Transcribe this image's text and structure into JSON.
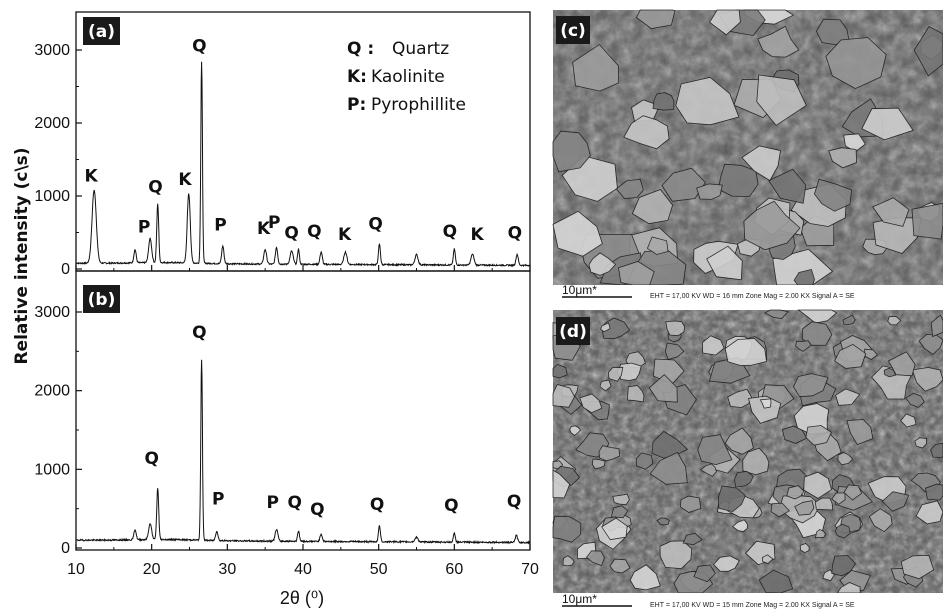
{
  "chart_data": [
    {
      "panel": "(a)",
      "type": "line",
      "xlabel": "2θ (⁰)",
      "ylabel": "Relative intensity (c\\s)",
      "xlim": [
        10,
        70
      ],
      "ylim": [
        0,
        3200
      ],
      "x_ticks": [
        "10",
        "20",
        "30",
        "40",
        "50",
        "60",
        "70"
      ],
      "y_ticks": [
        "0",
        "1000",
        "2000",
        "3000"
      ],
      "legend": [
        {
          "key": "Q :",
          "value": "Quartz"
        },
        {
          "key": "K:",
          "value": "Kaolinite"
        },
        {
          "key": "P:",
          "value": "Pyrophillite"
        }
      ],
      "baseline": 80,
      "peaks": [
        {
          "x": 12.4,
          "y": 1000,
          "w": 0.28
        },
        {
          "x": 17.8,
          "y": 180,
          "w": 0.15
        },
        {
          "x": 19.8,
          "y": 330,
          "w": 0.2
        },
        {
          "x": 20.8,
          "y": 800,
          "w": 0.13
        },
        {
          "x": 24.9,
          "y": 950,
          "w": 0.2
        },
        {
          "x": 26.6,
          "y": 2760,
          "w": 0.11
        },
        {
          "x": 29.4,
          "y": 240,
          "w": 0.15
        },
        {
          "x": 35.0,
          "y": 200,
          "w": 0.18
        },
        {
          "x": 36.5,
          "y": 230,
          "w": 0.15
        },
        {
          "x": 38.5,
          "y": 180,
          "w": 0.2
        },
        {
          "x": 39.4,
          "y": 210,
          "w": 0.12
        },
        {
          "x": 42.4,
          "y": 170,
          "w": 0.15
        },
        {
          "x": 45.6,
          "y": 170,
          "w": 0.2
        },
        {
          "x": 50.1,
          "y": 280,
          "w": 0.13
        },
        {
          "x": 55.0,
          "y": 140,
          "w": 0.2
        },
        {
          "x": 60.0,
          "y": 220,
          "w": 0.13
        },
        {
          "x": 62.4,
          "y": 150,
          "w": 0.2
        },
        {
          "x": 68.3,
          "y": 150,
          "w": 0.15
        }
      ],
      "peak_labels": [
        {
          "text": "K",
          "x": 12.0,
          "y": 1200
        },
        {
          "text": "P",
          "x": 19.0,
          "y": 500
        },
        {
          "text": "Q",
          "x": 20.5,
          "y": 1050
        },
        {
          "text": "K",
          "x": 24.4,
          "y": 1150
        },
        {
          "text": "Q",
          "x": 26.3,
          "y": 2980
        },
        {
          "text": "P",
          "x": 29.1,
          "y": 530
        },
        {
          "text": "K",
          "x": 34.8,
          "y": 480
        },
        {
          "text": "P",
          "x": 36.2,
          "y": 560
        },
        {
          "text": "Q",
          "x": 38.5,
          "y": 420
        },
        {
          "text": "Q",
          "x": 41.5,
          "y": 440
        },
        {
          "text": "K",
          "x": 45.5,
          "y": 400
        },
        {
          "text": "Q",
          "x": 49.6,
          "y": 540
        },
        {
          "text": "Q",
          "x": 59.4,
          "y": 440
        },
        {
          "text": "K",
          "x": 63.0,
          "y": 400
        },
        {
          "text": "Q",
          "x": 68.0,
          "y": 420
        }
      ]
    },
    {
      "panel": "(b)",
      "type": "line",
      "xlim": [
        10,
        70
      ],
      "ylim": [
        0,
        3200
      ],
      "x_ticks": [
        "10",
        "20",
        "30",
        "40",
        "50",
        "60",
        "70"
      ],
      "y_ticks": [
        "0",
        "1000",
        "2000",
        "3000"
      ],
      "baseline": 100,
      "peaks": [
        {
          "x": 17.8,
          "y": 130,
          "w": 0.15
        },
        {
          "x": 19.8,
          "y": 200,
          "w": 0.2
        },
        {
          "x": 20.8,
          "y": 650,
          "w": 0.13
        },
        {
          "x": 26.6,
          "y": 2300,
          "w": 0.11
        },
        {
          "x": 28.6,
          "y": 120,
          "w": 0.15
        },
        {
          "x": 36.5,
          "y": 150,
          "w": 0.18
        },
        {
          "x": 39.4,
          "y": 130,
          "w": 0.13
        },
        {
          "x": 42.4,
          "y": 90,
          "w": 0.15
        },
        {
          "x": 50.1,
          "y": 200,
          "w": 0.13
        },
        {
          "x": 55.0,
          "y": 60,
          "w": 0.2
        },
        {
          "x": 60.0,
          "y": 110,
          "w": 0.13
        },
        {
          "x": 68.2,
          "y": 90,
          "w": 0.15
        }
      ],
      "peak_labels": [
        {
          "text": "Q",
          "x": 20.0,
          "y": 1070
        },
        {
          "text": "Q",
          "x": 26.3,
          "y": 2670
        },
        {
          "text": "P",
          "x": 28.8,
          "y": 550
        },
        {
          "text": "P",
          "x": 36.0,
          "y": 510
        },
        {
          "text": "Q",
          "x": 38.9,
          "y": 510
        },
        {
          "text": "Q",
          "x": 41.9,
          "y": 420
        },
        {
          "text": "Q",
          "x": 49.8,
          "y": 480
        },
        {
          "text": "Q",
          "x": 59.6,
          "y": 470
        },
        {
          "text": "Q",
          "x": 67.9,
          "y": 520
        }
      ]
    }
  ],
  "sem": [
    {
      "panel": "(c)",
      "scale": "10μm*",
      "info": "EHT = 17,00 KV   WD = 16 mm   Zone Mag = 2.00 KX   Signal A = SE"
    },
    {
      "panel": "(d)",
      "scale": "10μm*",
      "info": "EHT = 17,00 KV   WD = 15 mm   Zone Mag = 2.00 KX   Signal A = SE"
    }
  ]
}
